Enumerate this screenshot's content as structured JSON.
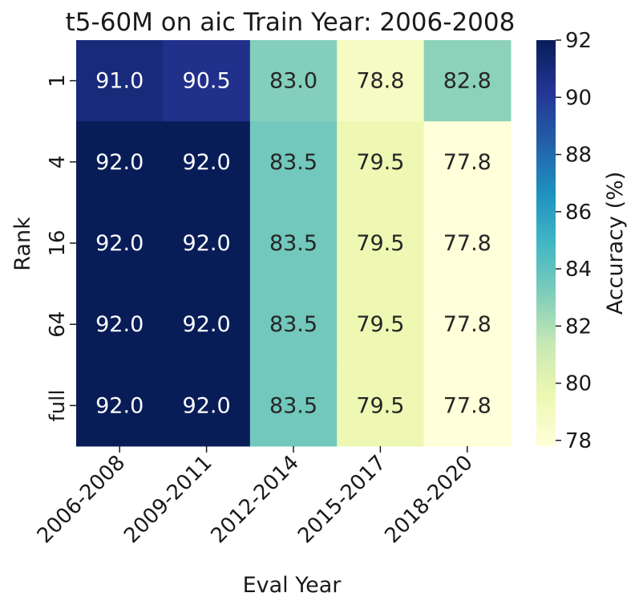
{
  "chart_data": {
    "type": "heatmap",
    "title": "t5-60M on aic Train Year: 2006-2008",
    "xlabel": "Eval Year",
    "ylabel": "Rank",
    "x_categories": [
      "2006-2008",
      "2009-2011",
      "2012-2014",
      "2015-2017",
      "2018-2020"
    ],
    "y_categories": [
      "1",
      "4",
      "16",
      "64",
      "full"
    ],
    "values": [
      [
        91.0,
        90.5,
        83.0,
        78.8,
        82.8
      ],
      [
        92.0,
        92.0,
        83.5,
        79.5,
        77.8
      ],
      [
        92.0,
        92.0,
        83.5,
        79.5,
        77.8
      ],
      [
        92.0,
        92.0,
        83.5,
        79.5,
        77.8
      ],
      [
        92.0,
        92.0,
        83.5,
        79.5,
        77.8
      ]
    ],
    "value_format": "0.0",
    "colorbar": {
      "label": "Accuracy (%)",
      "min": 77.8,
      "max": 92.0,
      "ticks": [
        78,
        80,
        82,
        84,
        86,
        88,
        90,
        92
      ],
      "colormap": "YlGnBu",
      "colors": [
        "#ffffd9",
        "#edf8b1",
        "#c7e9b4",
        "#7fcdbb",
        "#41b6c4",
        "#1d91c0",
        "#225ea8",
        "#253494",
        "#081d58"
      ]
    },
    "grid": false
  }
}
